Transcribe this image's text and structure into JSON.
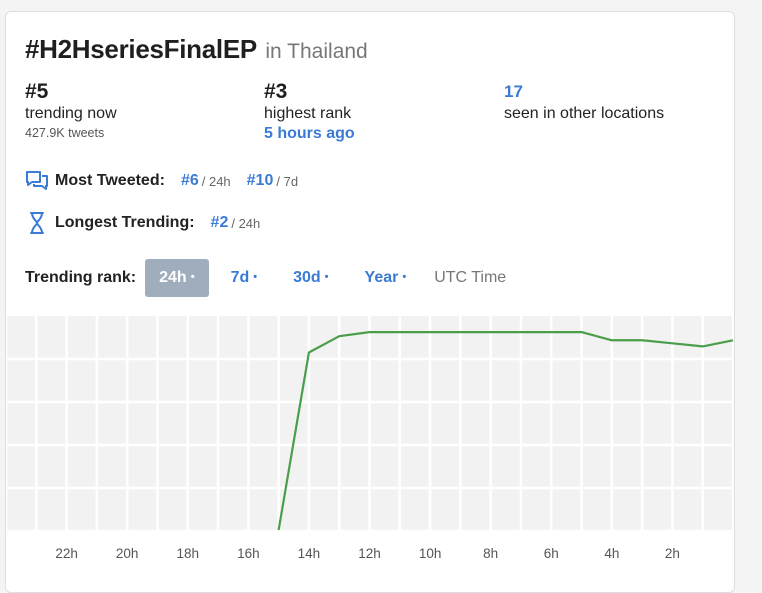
{
  "header": {
    "hashtag": "#H2HseriesFinalEP",
    "location": "in Thailand"
  },
  "stats": [
    {
      "value": "#5",
      "label": "trending now",
      "sub": "427.9K tweets"
    },
    {
      "value": "#3",
      "label": "highest rank",
      "sub": "5 hours ago"
    },
    {
      "value": "17",
      "label": "seen in other locations"
    }
  ],
  "most_tweeted": {
    "label": "Most Tweeted:",
    "icon": "chat-bubbles-icon",
    "items": [
      {
        "rank": "#6",
        "period": "/ 24h"
      },
      {
        "rank": "#10",
        "period": "/ 7d"
      }
    ]
  },
  "longest_trending": {
    "label": "Longest Trending:",
    "icon": "hourglass-icon",
    "items": [
      {
        "rank": "#2",
        "period": "/ 24h"
      }
    ]
  },
  "trending_rank": {
    "label": "Trending rank:",
    "tabs": [
      {
        "label": "24h",
        "active": true
      },
      {
        "label": "7d",
        "active": false
      },
      {
        "label": "30d",
        "active": false
      },
      {
        "label": "Year",
        "active": false
      }
    ],
    "dot": "•",
    "utc": "UTC Time"
  },
  "colors": {
    "accent": "#3a7bd5",
    "line": "#4a9e4a",
    "grid_bg": "#f2f2f3"
  },
  "chart_data": {
    "type": "line",
    "x_tick_labels": [
      "22h",
      "20h",
      "18h",
      "16h",
      "14h",
      "12h",
      "10h",
      "8h",
      "6h",
      "4h",
      "2h"
    ],
    "x_unit": "hours ago",
    "x_range": [
      24,
      0
    ],
    "y_inverted": true,
    "y_range": [
      1,
      11
    ],
    "series": [
      {
        "x": [
          15.0,
          14.0,
          13.0,
          12.0,
          11.0,
          10.0,
          9.0,
          8.0,
          7.0,
          6.0,
          5.0,
          4.0,
          3.0,
          2.0,
          1.0,
          0.0
        ],
        "y": [
          11.0,
          2.3,
          1.5,
          1.3,
          1.3,
          1.3,
          1.3,
          1.3,
          1.3,
          1.3,
          1.3,
          1.7,
          1.7,
          1.85,
          2.0,
          1.7
        ]
      }
    ],
    "grid": true
  }
}
